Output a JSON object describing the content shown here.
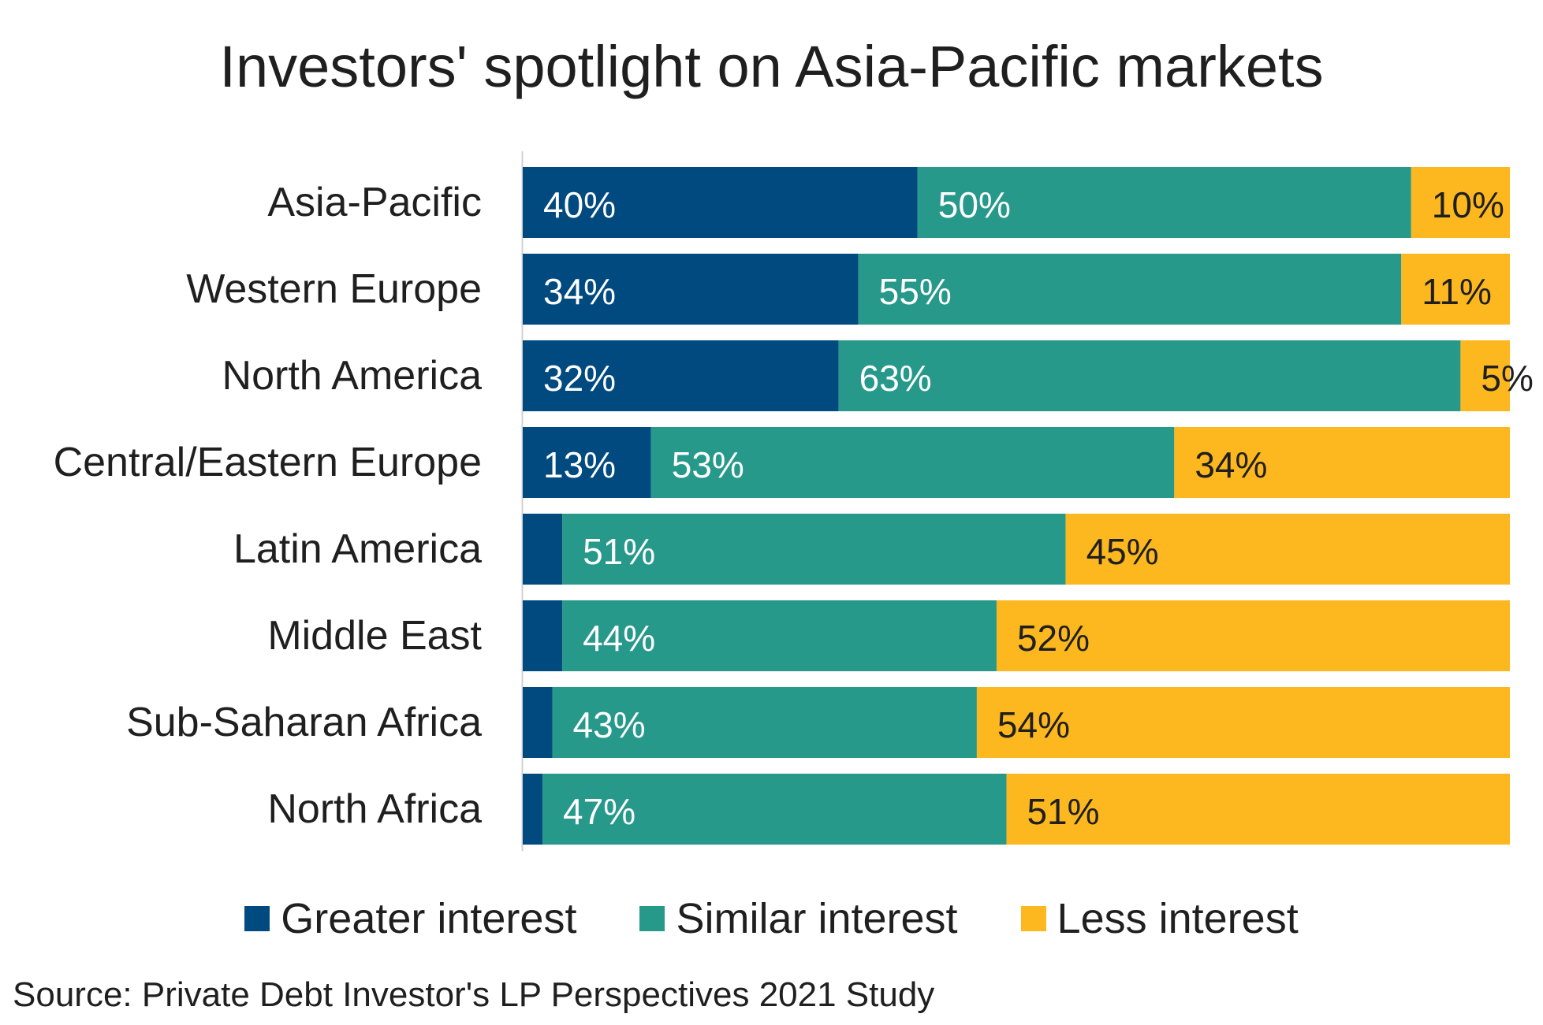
{
  "title": "Investors' spotlight on Asia-Pacific markets",
  "source": "Source: Private Debt Investor's LP Perspectives 2021 Study",
  "colors": {
    "greater": "#004a80",
    "similar": "#26998b",
    "less": "#fdb71f"
  },
  "chart_data": {
    "type": "bar",
    "orientation": "horizontal",
    "stacked": true,
    "categories": [
      "Asia-Pacific",
      "Western Europe",
      "North America",
      "Central/Eastern Europe",
      "Latin America",
      "Middle East",
      "Sub-Saharan Africa",
      "North Africa"
    ],
    "series": [
      {
        "name": "Greater interest",
        "color": "#004a80",
        "values": [
          40,
          34,
          32,
          13,
          4,
          4,
          3,
          2
        ],
        "labels": [
          "40%",
          "34%",
          "32%",
          "13%",
          "",
          "",
          "",
          ""
        ]
      },
      {
        "name": "Similar interest",
        "color": "#26998b",
        "values": [
          50,
          55,
          63,
          53,
          51,
          44,
          43,
          47
        ],
        "labels": [
          "50%",
          "55%",
          "63%",
          "53%",
          "51%",
          "44%",
          "43%",
          "47%"
        ]
      },
      {
        "name": "Less interest",
        "color": "#fdb71f",
        "values": [
          10,
          11,
          5,
          34,
          45,
          52,
          54,
          51
        ],
        "labels": [
          "10%",
          "11%",
          "5%",
          "34%",
          "45%",
          "52%",
          "54%",
          "51%"
        ]
      }
    ],
    "xlim": [
      0,
      100
    ],
    "grid": false,
    "legend_position": "bottom"
  }
}
